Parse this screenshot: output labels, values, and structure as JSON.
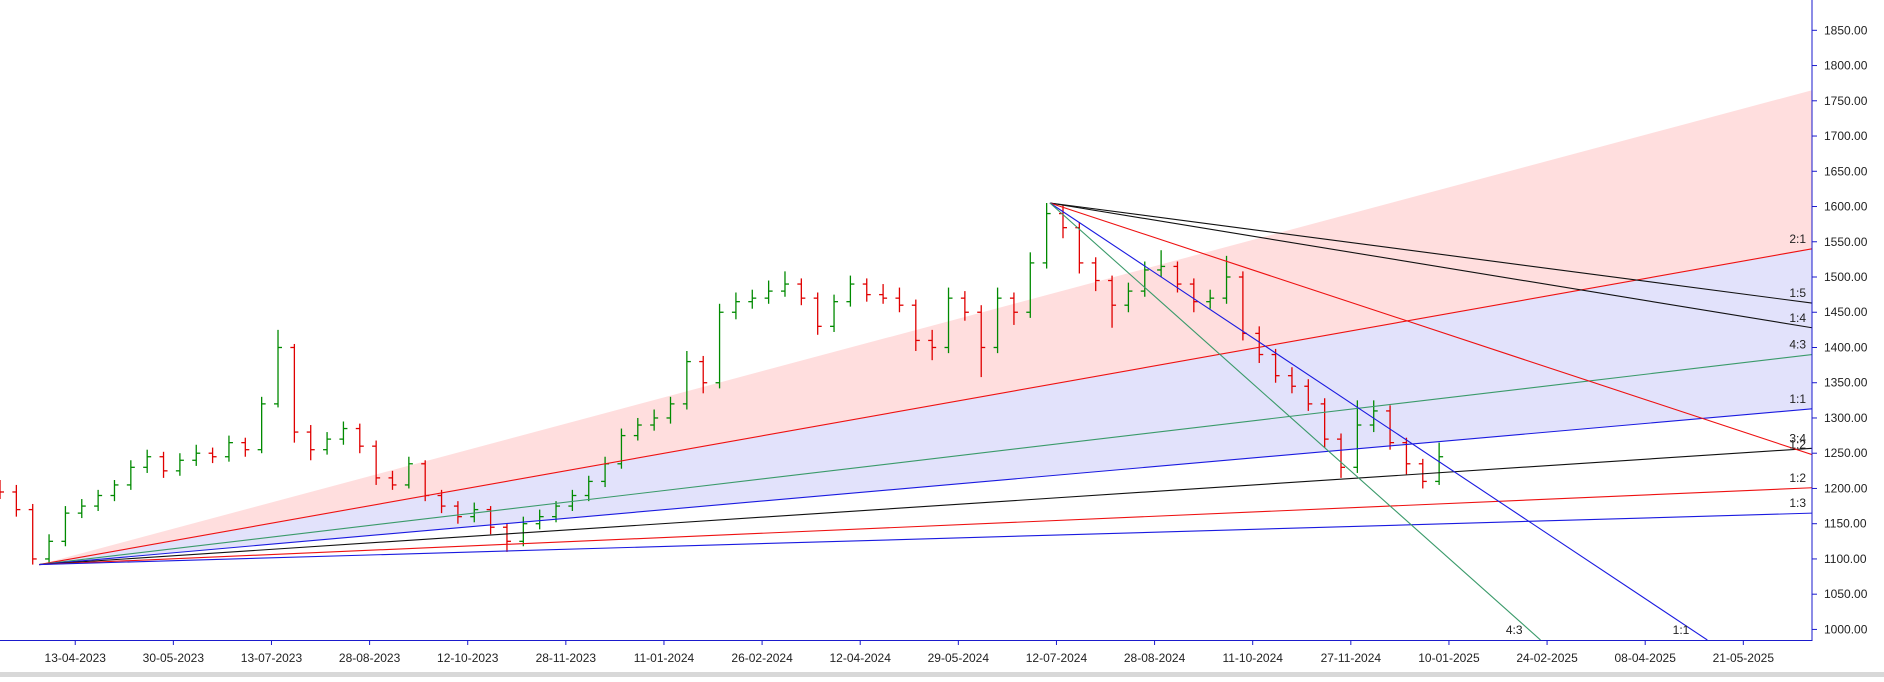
{
  "chart_data": {
    "type": "ohlc",
    "up_color": "#008a00",
    "down_color": "#e00000",
    "xlim": [
      7,
      561
    ],
    "ylim": [
      985,
      1893
    ],
    "xticks": [
      {
        "value": 30,
        "label": "13-04-2023"
      },
      {
        "value": 60,
        "label": "30-05-2023"
      },
      {
        "value": 90,
        "label": "13-07-2023"
      },
      {
        "value": 120,
        "label": "28-08-2023"
      },
      {
        "value": 150,
        "label": "12-10-2023"
      },
      {
        "value": 180,
        "label": "28-11-2023"
      },
      {
        "value": 210,
        "label": "11-01-2024"
      },
      {
        "value": 240,
        "label": "26-02-2024"
      },
      {
        "value": 270,
        "label": "12-04-2024"
      },
      {
        "value": 300,
        "label": "29-05-2024"
      },
      {
        "value": 330,
        "label": "12-07-2024"
      },
      {
        "value": 360,
        "label": "28-08-2024"
      },
      {
        "value": 390,
        "label": "11-10-2024"
      },
      {
        "value": 420,
        "label": "27-11-2024"
      },
      {
        "value": 450,
        "label": "10-01-2025"
      },
      {
        "value": 480,
        "label": "24-02-2025"
      },
      {
        "value": 510,
        "label": "08-04-2025"
      },
      {
        "value": 540,
        "label": "21-05-2025"
      }
    ],
    "yticks": [
      {
        "value": 1000,
        "label": "1000.00"
      },
      {
        "value": 1050,
        "label": "1050.00"
      },
      {
        "value": 1100,
        "label": "1100.00"
      },
      {
        "value": 1150,
        "label": "1150.00"
      },
      {
        "value": 1200,
        "label": "1200.00"
      },
      {
        "value": 1250,
        "label": "1250.00"
      },
      {
        "value": 1300,
        "label": "1300.00"
      },
      {
        "value": 1350,
        "label": "1350.00"
      },
      {
        "value": 1400,
        "label": "1400.00"
      },
      {
        "value": 1450,
        "label": "1450.00"
      },
      {
        "value": 1500,
        "label": "1500.00"
      },
      {
        "value": 1550,
        "label": "1550.00"
      },
      {
        "value": 1600,
        "label": "1600.00"
      },
      {
        "value": 1650,
        "label": "1650.00"
      },
      {
        "value": 1700,
        "label": "1700.00"
      },
      {
        "value": 1750,
        "label": "1750.00"
      },
      {
        "value": 1800,
        "label": "1800.00"
      },
      {
        "value": 1850,
        "label": "1850.00"
      }
    ],
    "x": [
      7,
      12,
      17,
      22,
      27,
      32,
      37,
      42,
      47,
      52,
      57,
      62,
      67,
      72,
      77,
      82,
      87,
      92,
      97,
      102,
      107,
      112,
      117,
      122,
      127,
      132,
      137,
      142,
      147,
      152,
      157,
      162,
      167,
      172,
      177,
      182,
      187,
      192,
      197,
      202,
      207,
      212,
      217,
      222,
      227,
      232,
      237,
      242,
      247,
      252,
      257,
      262,
      267,
      272,
      277,
      282,
      287,
      292,
      297,
      302,
      307,
      312,
      317,
      322,
      327,
      332,
      337,
      342,
      347,
      352,
      357,
      362,
      367,
      372,
      377,
      382,
      387,
      392,
      397,
      402,
      407,
      412,
      417,
      422,
      427,
      432,
      437,
      442,
      447
    ],
    "open": [
      1200,
      1195,
      1170,
      1100,
      1125,
      1165,
      1175,
      1190,
      1205,
      1230,
      1245,
      1225,
      1240,
      1250,
      1245,
      1265,
      1255,
      1320,
      1400,
      1280,
      1255,
      1270,
      1285,
      1260,
      1215,
      1205,
      1235,
      1190,
      1175,
      1160,
      1170,
      1145,
      1125,
      1150,
      1160,
      1175,
      1190,
      1210,
      1235,
      1275,
      1290,
      1300,
      1320,
      1380,
      1350,
      1450,
      1465,
      1470,
      1480,
      1490,
      1470,
      1430,
      1465,
      1490,
      1475,
      1470,
      1460,
      1410,
      1400,
      1470,
      1450,
      1400,
      1470,
      1450,
      1520,
      1590,
      1570,
      1520,
      1495,
      1460,
      1480,
      1510,
      1515,
      1490,
      1465,
      1470,
      1500,
      1420,
      1390,
      1360,
      1345,
      1320,
      1270,
      1230,
      1290,
      1310,
      1265,
      1235,
      1210
    ],
    "high": [
      1212,
      1205,
      1178,
      1135,
      1175,
      1185,
      1198,
      1212,
      1240,
      1255,
      1252,
      1250,
      1262,
      1258,
      1275,
      1272,
      1330,
      1425,
      1405,
      1290,
      1280,
      1295,
      1292,
      1268,
      1225,
      1245,
      1240,
      1198,
      1182,
      1180,
      1175,
      1150,
      1160,
      1170,
      1182,
      1198,
      1218,
      1245,
      1285,
      1300,
      1312,
      1330,
      1395,
      1388,
      1462,
      1478,
      1482,
      1495,
      1508,
      1498,
      1478,
      1475,
      1502,
      1498,
      1490,
      1485,
      1468,
      1425,
      1485,
      1480,
      1460,
      1485,
      1478,
      1535,
      1605,
      1602,
      1578,
      1528,
      1502,
      1492,
      1522,
      1538,
      1522,
      1498,
      1482,
      1530,
      1508,
      1430,
      1398,
      1372,
      1355,
      1328,
      1278,
      1325,
      1325,
      1318,
      1272,
      1242,
      1265
    ],
    "low": [
      1185,
      1160,
      1092,
      1095,
      1118,
      1158,
      1168,
      1182,
      1198,
      1222,
      1215,
      1218,
      1232,
      1236,
      1238,
      1245,
      1250,
      1315,
      1265,
      1240,
      1248,
      1262,
      1250,
      1205,
      1198,
      1200,
      1182,
      1165,
      1150,
      1152,
      1135,
      1110,
      1118,
      1142,
      1152,
      1168,
      1182,
      1202,
      1228,
      1268,
      1282,
      1292,
      1312,
      1335,
      1342,
      1440,
      1455,
      1462,
      1472,
      1460,
      1418,
      1422,
      1458,
      1465,
      1462,
      1450,
      1395,
      1382,
      1392,
      1438,
      1358,
      1392,
      1432,
      1442,
      1512,
      1555,
      1505,
      1480,
      1428,
      1450,
      1472,
      1500,
      1478,
      1450,
      1455,
      1462,
      1410,
      1378,
      1350,
      1335,
      1310,
      1258,
      1215,
      1222,
      1280,
      1255,
      1220,
      1200,
      1205
    ],
    "close": [
      1195,
      1170,
      1100,
      1125,
      1165,
      1175,
      1190,
      1205,
      1230,
      1245,
      1225,
      1240,
      1250,
      1245,
      1265,
      1255,
      1320,
      1400,
      1280,
      1255,
      1270,
      1285,
      1260,
      1215,
      1205,
      1235,
      1190,
      1175,
      1160,
      1170,
      1145,
      1125,
      1150,
      1160,
      1175,
      1190,
      1210,
      1235,
      1275,
      1290,
      1300,
      1320,
      1380,
      1350,
      1450,
      1465,
      1470,
      1480,
      1490,
      1470,
      1430,
      1465,
      1490,
      1475,
      1470,
      1460,
      1410,
      1400,
      1470,
      1450,
      1400,
      1470,
      1450,
      1520,
      1590,
      1570,
      1520,
      1495,
      1460,
      1480,
      1510,
      1515,
      1490,
      1465,
      1470,
      1500,
      1420,
      1390,
      1360,
      1345,
      1320,
      1270,
      1230,
      1290,
      1310,
      1265,
      1235,
      1210,
      1245
    ],
    "bands": [
      {
        "color": "#ffdede",
        "x1": 19,
        "y1": 1092,
        "x2": 561,
        "upper": 1765,
        "lower": 1540
      },
      {
        "color": "#e2e2fb",
        "x1": 19,
        "y1": 1092,
        "x2": 561,
        "upper": 1540,
        "lower": 1313
      }
    ],
    "fans": [
      {
        "color": "#ee1111",
        "label": "2:1",
        "x1": 19,
        "y1": 1092,
        "x2": 561,
        "y2": 1540
      },
      {
        "color": "#3a9a6a",
        "label": "4:3",
        "x1": 19,
        "y1": 1092,
        "x2": 561,
        "y2": 1390
      },
      {
        "color": "#1a1ae0",
        "label": "1:1",
        "x1": 19,
        "y1": 1092,
        "x2": 561,
        "y2": 1313
      },
      {
        "color": "#111111",
        "label": "3:4",
        "x1": 19,
        "y1": 1092,
        "x2": 561,
        "y2": 1257
      },
      {
        "color": "#ee1111",
        "label": "1:2",
        "x1": 19,
        "y1": 1092,
        "x2": 561,
        "y2": 1201
      },
      {
        "color": "#1a1ae0",
        "label": "1:3",
        "x1": 19,
        "y1": 1092,
        "x2": 561,
        "y2": 1165
      },
      {
        "color": "#111111",
        "label": "1:5",
        "x1": 328,
        "y1": 1605,
        "x2": 561,
        "y2": 1463
      },
      {
        "color": "#111111",
        "label": "1:4",
        "x1": 328,
        "y1": 1605,
        "x2": 561,
        "y2": 1428
      },
      {
        "color": "#ee1111",
        "label": "1:2",
        "x1": 328,
        "y1": 1605,
        "x2": 561,
        "y2": 1248
      },
      {
        "color": "#1a1ae0",
        "label": "1:1",
        "x1": 328,
        "y1": 1605,
        "x2": 529,
        "y2": 985
      },
      {
        "color": "#3a9a6a",
        "label": "4:3",
        "x1": 328,
        "y1": 1605,
        "x2": 478,
        "y2": 985
      }
    ]
  }
}
